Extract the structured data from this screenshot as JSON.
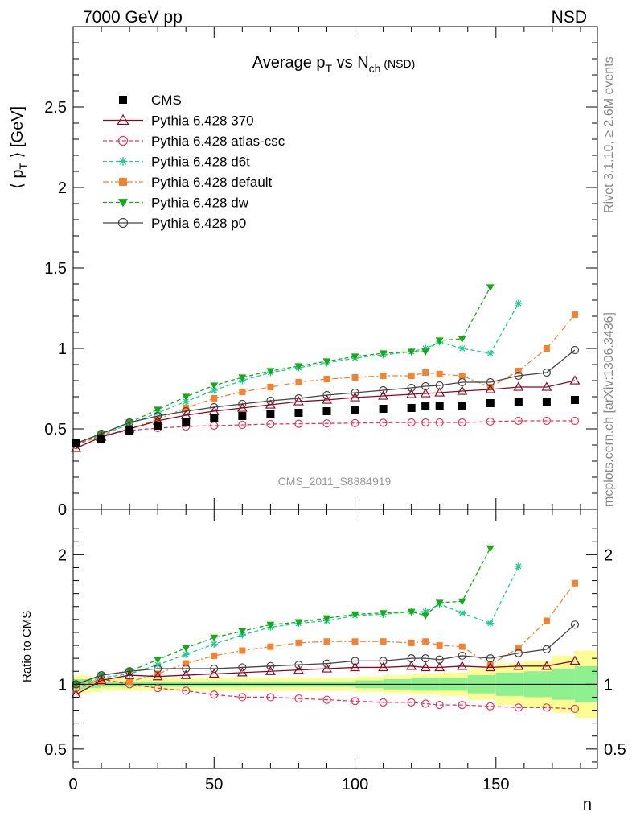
{
  "header": {
    "left": "7000 GeV pp",
    "right": "NSD"
  },
  "side_labels": {
    "rivet": "Rivet 3.1.10, ≥ 2.6M events",
    "mcplots": "mcplots.cern.ch [arXiv:1306.3436]"
  },
  "chart_data": [
    {
      "type": "scatter",
      "title": {
        "main": "Average p",
        "sub1": "T",
        "mid": " vs N",
        "sub2": "ch",
        "tail": " (NSD)"
      },
      "ylabel": {
        "pre": "⟨ p",
        "sub": "T",
        "post": " ⟩ [GeV]"
      },
      "watermark": "CMS_2011_S8884919",
      "xlim": [
        0,
        186
      ],
      "ylim": [
        0,
        3.0
      ],
      "yticks": [
        "0",
        "0.5",
        "1",
        "1.5",
        "2",
        "2.5"
      ],
      "ytick_values": [
        0,
        0.5,
        1,
        1.5,
        2,
        2.5
      ],
      "legend_position": "top-left",
      "legend": [
        {
          "label": "CMS",
          "color": "#000000",
          "marker": "square-filled",
          "line": "none"
        },
        {
          "label": "Pythia 6.428 370",
          "color": "#8b0a1e",
          "marker": "triangle-open",
          "line": "solid"
        },
        {
          "label": "Pythia 6.428 atlas-csc",
          "color": "#e8355a",
          "marker": "circle-open",
          "line": "dashed"
        },
        {
          "label": "Pythia 6.428 d6t",
          "color": "#1ec994",
          "marker": "star",
          "line": "dashed"
        },
        {
          "label": "Pythia 6.428 default",
          "color": "#f58231",
          "marker": "square-filled",
          "line": "dashdot"
        },
        {
          "label": "Pythia 6.428 dw",
          "color": "#18a818",
          "marker": "triangle-down-filled",
          "line": "dashed"
        },
        {
          "label": "Pythia 6.428 p0",
          "color": "#444444",
          "marker": "circle-open",
          "line": "solid"
        }
      ],
      "series": [
        {
          "name": "CMS",
          "x": [
            1,
            10,
            20,
            30,
            40,
            50,
            60,
            70,
            80,
            90,
            100,
            110,
            120,
            125,
            130,
            138,
            148,
            158,
            168,
            178
          ],
          "y": [
            0.41,
            0.44,
            0.49,
            0.52,
            0.545,
            0.565,
            0.58,
            0.59,
            0.6,
            0.61,
            0.615,
            0.625,
            0.63,
            0.64,
            0.645,
            0.645,
            0.66,
            0.67,
            0.67,
            0.68
          ]
        },
        {
          "name": "Pythia 6.428 370",
          "x": [
            1,
            10,
            20,
            30,
            40,
            50,
            60,
            70,
            80,
            90,
            100,
            110,
            120,
            125,
            130,
            138,
            148,
            158,
            168,
            178
          ],
          "y": [
            0.38,
            0.45,
            0.5,
            0.55,
            0.585,
            0.61,
            0.63,
            0.65,
            0.67,
            0.68,
            0.695,
            0.705,
            0.715,
            0.72,
            0.725,
            0.735,
            0.745,
            0.76,
            0.76,
            0.8
          ]
        },
        {
          "name": "Pythia 6.428 atlas-csc",
          "x": [
            1,
            10,
            20,
            30,
            40,
            50,
            60,
            70,
            80,
            90,
            100,
            110,
            120,
            125,
            130,
            138,
            148,
            158,
            168,
            178
          ],
          "y": [
            0.4,
            0.46,
            0.49,
            0.505,
            0.515,
            0.52,
            0.525,
            0.53,
            0.532,
            0.534,
            0.536,
            0.538,
            0.54,
            0.54,
            0.54,
            0.54,
            0.545,
            0.55,
            0.55,
            0.55
          ]
        },
        {
          "name": "Pythia 6.428 d6t",
          "x": [
            1,
            10,
            20,
            30,
            40,
            50,
            60,
            70,
            80,
            90,
            100,
            110,
            120,
            125,
            130,
            138,
            148,
            158
          ],
          "y": [
            0.41,
            0.46,
            0.53,
            0.6,
            0.67,
            0.74,
            0.8,
            0.85,
            0.88,
            0.91,
            0.94,
            0.96,
            0.98,
            1.0,
            1.04,
            1.0,
            0.97,
            1.28
          ]
        },
        {
          "name": "Pythia 6.428 default",
          "x": [
            1,
            10,
            20,
            30,
            40,
            50,
            60,
            70,
            80,
            90,
            100,
            110,
            120,
            125,
            130,
            138,
            148,
            158,
            168,
            178
          ],
          "y": [
            0.41,
            0.45,
            0.5,
            0.56,
            0.63,
            0.69,
            0.73,
            0.76,
            0.79,
            0.81,
            0.82,
            0.83,
            0.83,
            0.85,
            0.84,
            0.83,
            0.76,
            0.86,
            1.0,
            1.21
          ]
        },
        {
          "name": "Pythia 6.428 dw",
          "x": [
            1,
            10,
            20,
            30,
            40,
            50,
            60,
            70,
            80,
            90,
            100,
            110,
            120,
            125,
            130,
            138,
            148
          ],
          "y": [
            0.41,
            0.47,
            0.54,
            0.62,
            0.7,
            0.77,
            0.82,
            0.86,
            0.89,
            0.92,
            0.95,
            0.97,
            0.98,
            0.98,
            1.05,
            1.06,
            1.38
          ]
        },
        {
          "name": "Pythia 6.428 p0",
          "x": [
            1,
            10,
            20,
            30,
            40,
            50,
            60,
            70,
            80,
            90,
            100,
            110,
            120,
            125,
            130,
            138,
            148,
            158,
            168,
            178
          ],
          "y": [
            0.41,
            0.47,
            0.54,
            0.58,
            0.61,
            0.635,
            0.655,
            0.675,
            0.69,
            0.71,
            0.725,
            0.74,
            0.755,
            0.765,
            0.77,
            0.79,
            0.79,
            0.83,
            0.85,
            0.99
          ]
        }
      ]
    },
    {
      "type": "scatter",
      "ylabel": "Ratio to CMS",
      "xlabel": "n",
      "xlim": [
        0,
        186
      ],
      "ylim": [
        0.35,
        2.35
      ],
      "xticks": [
        "0",
        "50",
        "100",
        "150"
      ],
      "xtick_values": [
        0,
        50,
        100,
        150
      ],
      "yticks": [
        "0.5",
        "1",
        "2"
      ],
      "ytick_values": [
        0.5,
        1,
        2
      ],
      "band_x": [
        0,
        5,
        10,
        20,
        40,
        60,
        80,
        100,
        110,
        120,
        130,
        140,
        150,
        160,
        170,
        178,
        186
      ],
      "band_inner": [
        0.04,
        0.03,
        0.02,
        0.02,
        0.02,
        0.02,
        0.02,
        0.03,
        0.04,
        0.05,
        0.05,
        0.07,
        0.09,
        0.1,
        0.12,
        0.14,
        0.14
      ],
      "band_outer": [
        0.07,
        0.06,
        0.05,
        0.05,
        0.05,
        0.05,
        0.05,
        0.06,
        0.07,
        0.08,
        0.09,
        0.12,
        0.16,
        0.18,
        0.22,
        0.26,
        0.26
      ],
      "series": [
        {
          "name": "Pythia 6.428 370",
          "x": [
            1,
            10,
            20,
            30,
            40,
            50,
            60,
            70,
            80,
            90,
            100,
            110,
            120,
            125,
            130,
            138,
            148,
            158,
            168,
            178
          ],
          "y": [
            0.92,
            1.03,
            1.07,
            1.06,
            1.07,
            1.08,
            1.09,
            1.1,
            1.11,
            1.12,
            1.13,
            1.13,
            1.14,
            1.13,
            1.13,
            1.14,
            1.13,
            1.14,
            1.14,
            1.18
          ]
        },
        {
          "name": "Pythia 6.428 atlas-csc",
          "x": [
            1,
            10,
            20,
            30,
            40,
            50,
            60,
            70,
            80,
            90,
            100,
            110,
            120,
            125,
            130,
            138,
            148,
            158,
            168,
            178
          ],
          "y": [
            0.97,
            1.04,
            1.0,
            0.97,
            0.95,
            0.92,
            0.9,
            0.9,
            0.89,
            0.88,
            0.87,
            0.86,
            0.86,
            0.85,
            0.84,
            0.84,
            0.83,
            0.82,
            0.82,
            0.81
          ]
        },
        {
          "name": "Pythia 6.428 d6t",
          "x": [
            1,
            10,
            20,
            30,
            40,
            50,
            60,
            70,
            80,
            90,
            100,
            110,
            120,
            125,
            130,
            138,
            148,
            158
          ],
          "y": [
            1.0,
            1.05,
            1.08,
            1.15,
            1.23,
            1.31,
            1.38,
            1.44,
            1.47,
            1.49,
            1.53,
            1.54,
            1.56,
            1.56,
            1.62,
            1.55,
            1.47,
            1.91
          ]
        },
        {
          "name": "Pythia 6.428 default",
          "x": [
            1,
            10,
            20,
            30,
            40,
            50,
            60,
            70,
            80,
            90,
            100,
            110,
            120,
            125,
            130,
            138,
            148,
            158,
            168,
            178
          ],
          "y": [
            1.0,
            1.02,
            1.02,
            1.08,
            1.16,
            1.22,
            1.26,
            1.29,
            1.32,
            1.33,
            1.33,
            1.33,
            1.32,
            1.33,
            1.3,
            1.29,
            1.15,
            1.28,
            1.49,
            1.78
          ]
        },
        {
          "name": "Pythia 6.428 dw",
          "x": [
            1,
            10,
            20,
            30,
            40,
            50,
            60,
            70,
            80,
            90,
            100,
            110,
            120,
            125,
            130,
            138,
            148
          ],
          "y": [
            1.0,
            1.07,
            1.1,
            1.19,
            1.28,
            1.36,
            1.41,
            1.46,
            1.48,
            1.51,
            1.54,
            1.55,
            1.56,
            1.53,
            1.63,
            1.64,
            2.05
          ]
        },
        {
          "name": "Pythia 6.428 p0",
          "x": [
            1,
            10,
            20,
            30,
            40,
            50,
            60,
            70,
            80,
            90,
            100,
            110,
            120,
            125,
            130,
            138,
            148,
            158,
            168,
            178
          ],
          "y": [
            1.0,
            1.07,
            1.1,
            1.12,
            1.12,
            1.12,
            1.13,
            1.14,
            1.15,
            1.16,
            1.18,
            1.18,
            1.2,
            1.2,
            1.19,
            1.22,
            1.2,
            1.24,
            1.27,
            1.46
          ]
        }
      ]
    }
  ]
}
